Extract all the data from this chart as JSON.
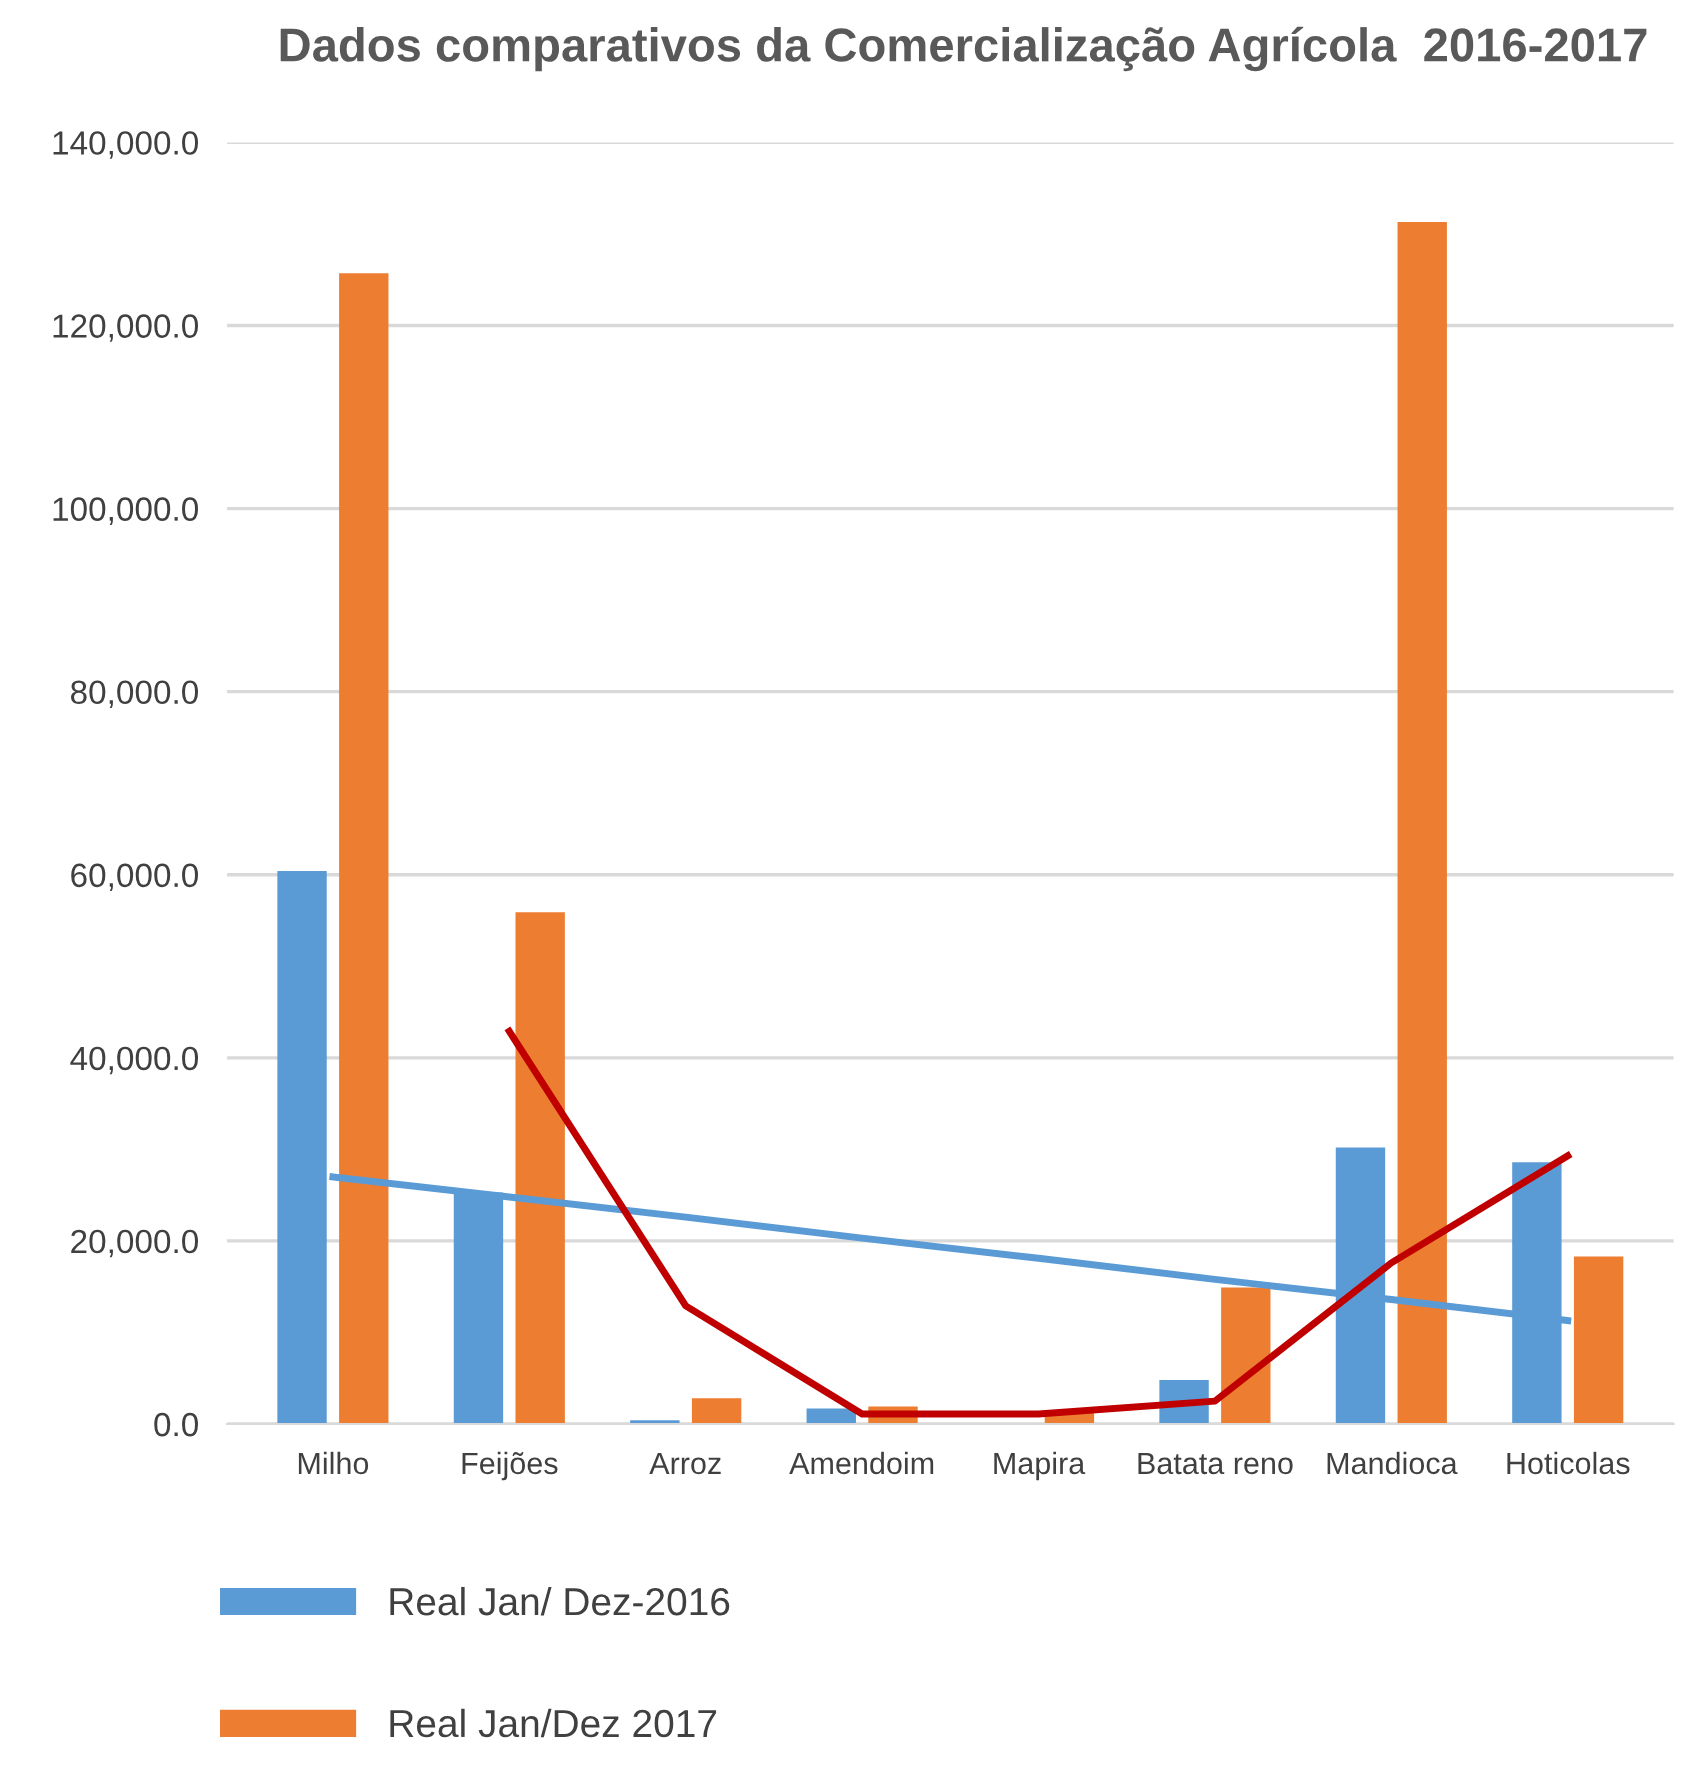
{
  "chart_data": {
    "type": "bar",
    "title": "Dados comparativos da Comercialização Agrícola  2016-2017",
    "categories": [
      "Milho",
      "Feijões",
      "Arroz",
      "Amendoim",
      "Mapira",
      "Batata reno",
      "Mandioca",
      "Hoticolas"
    ],
    "series": [
      {
        "name": "Real Jan/ Dez-2016",
        "color": "#5b9bd5",
        "values": [
          60400,
          25300,
          400,
          1700,
          0,
          4800,
          30200,
          28600
        ]
      },
      {
        "name": "Real Jan/Dez 2017",
        "color": "#ed7d31",
        "values": [
          125700,
          55900,
          2800,
          1900,
          1300,
          14900,
          131300,
          18300
        ]
      },
      {
        "type": "line",
        "color": "#5b9bd5",
        "values": [
          27000,
          24800,
          22600,
          20300,
          18100,
          15800,
          13600,
          11300
        ]
      },
      {
        "type": "line",
        "color": "#c00000",
        "values": [
          null,
          42900,
          12900,
          1100,
          1100,
          2500,
          17600,
          29300
        ]
      }
    ],
    "ylim": [
      0,
      140000
    ],
    "yticks": [
      {
        "value": 0,
        "label": "0.0"
      },
      {
        "value": 20000,
        "label": "20,000.0"
      },
      {
        "value": 40000,
        "label": "40,000.0"
      },
      {
        "value": 60000,
        "label": "60,000.0"
      },
      {
        "value": 80000,
        "label": "80,000.0"
      },
      {
        "value": 100000,
        "label": "100,000.0"
      },
      {
        "value": 120000,
        "label": "120,000.0"
      },
      {
        "value": 140000,
        "label": "140,000.0"
      }
    ],
    "grid": "y",
    "legend": "bottom left"
  }
}
